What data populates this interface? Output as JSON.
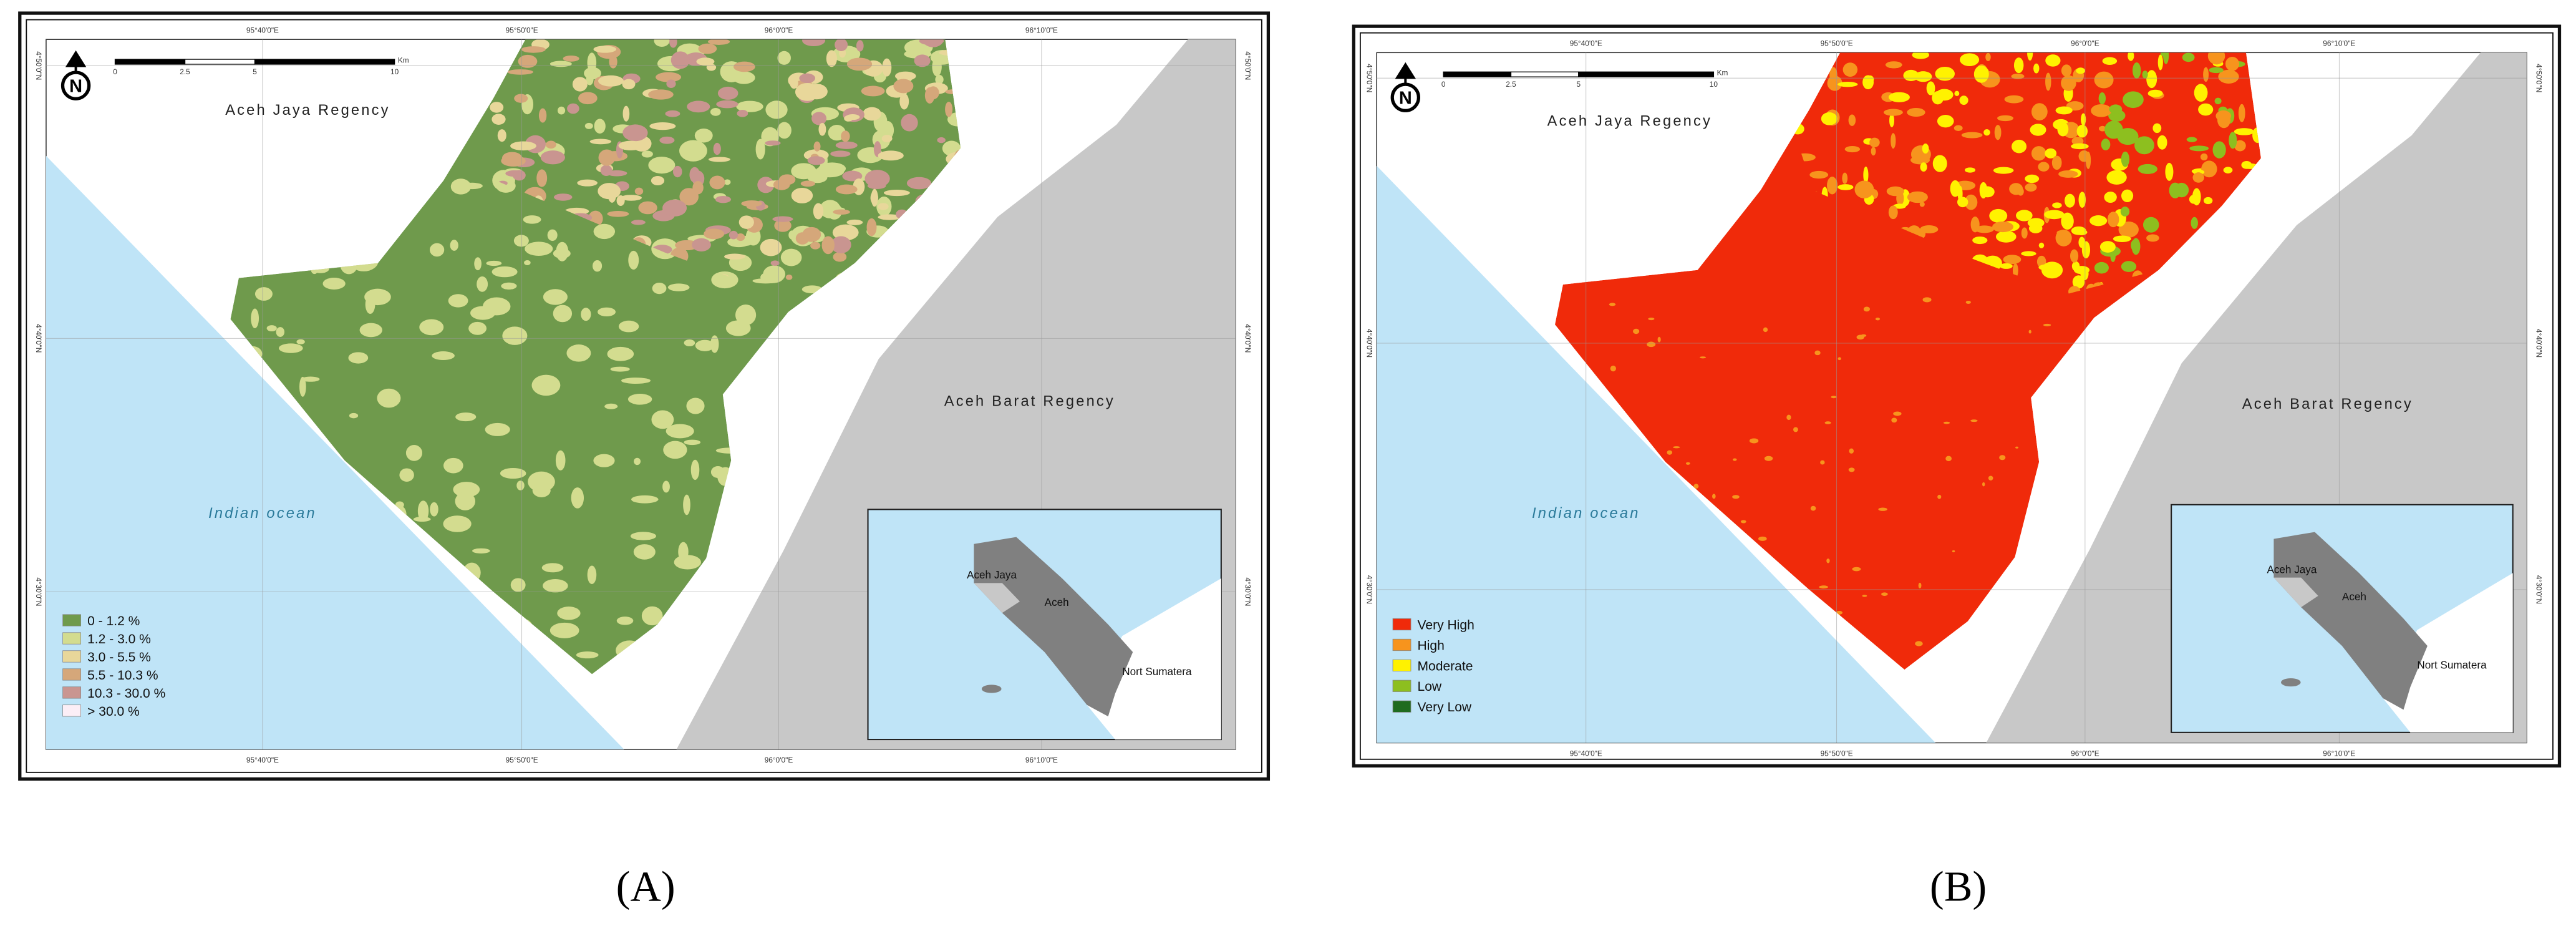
{
  "panels": [
    {
      "label": "(A)",
      "north": "N",
      "scale": [
        "0",
        "2.5",
        "5",
        "10",
        "Km"
      ],
      "places": {
        "top": "Aceh Jaya Regency",
        "right": "Aceh Barat Regency",
        "ocean": "Indian ocean"
      },
      "lon_labels": [
        "95°40'0\"E",
        "95°50'0\"E",
        "96°0'0\"E",
        "96°10'0\"E"
      ],
      "lat_labels": [
        "4°50'0\"N",
        "4°40'0\"N",
        "4°30'0\"N"
      ],
      "inset_labels": [
        "Aceh Jaya",
        "Aceh",
        "Nort Sumatera"
      ],
      "legend": [
        {
          "label": "0 - 1.2 %",
          "color": "#6f9a4c"
        },
        {
          "label": "1.2 - 3.0 %",
          "color": "#d3dc8f"
        },
        {
          "label": "3.0 - 5.5 %",
          "color": "#e8d79a"
        },
        {
          "label": "5.5 - 10.3 %",
          "color": "#d5a77a"
        },
        {
          "label": "10.3 - 30.0 %",
          "color": "#c99590"
        },
        {
          "label": "> 30.0 %",
          "color": "#fbeef6"
        }
      ]
    },
    {
      "label": "(B)",
      "north": "N",
      "scale": [
        "0",
        "2.5",
        "5",
        "10",
        "Km"
      ],
      "places": {
        "top": "Aceh Jaya Regency",
        "right": "Aceh Barat Regency",
        "ocean": "Indian ocean"
      },
      "lon_labels": [
        "95°40'0\"E",
        "95°50'0\"E",
        "96°0'0\"E",
        "96°10'0\"E"
      ],
      "lat_labels": [
        "4°50'0\"N",
        "4°40'0\"N",
        "4°30'0\"N"
      ],
      "inset_labels": [
        "Aceh Jaya",
        "Aceh",
        "Nort Sumatera"
      ],
      "legend": [
        {
          "label": "Very High",
          "color": "#f02a0a"
        },
        {
          "label": "High",
          "color": "#f7941d"
        },
        {
          "label": "Moderate",
          "color": "#fff200"
        },
        {
          "label": "Low",
          "color": "#8dbf1f"
        },
        {
          "label": "Very Low",
          "color": "#1f6b1f"
        }
      ]
    }
  ]
}
